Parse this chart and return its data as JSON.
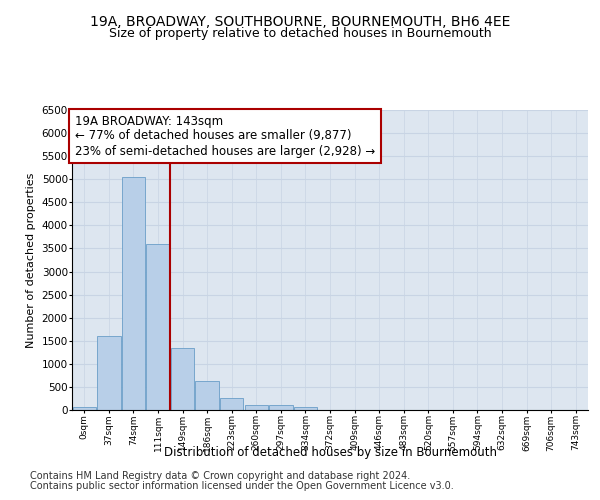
{
  "title_line1": "19A, BROADWAY, SOUTHBOURNE, BOURNEMOUTH, BH6 4EE",
  "title_line2": "Size of property relative to detached houses in Bournemouth",
  "xlabel": "Distribution of detached houses by size in Bournemouth",
  "ylabel": "Number of detached properties",
  "footer_line1": "Contains HM Land Registry data © Crown copyright and database right 2024.",
  "footer_line2": "Contains public sector information licensed under the Open Government Licence v3.0.",
  "annotation_line1": "19A BROADWAY: 143sqm",
  "annotation_line2": "← 77% of detached houses are smaller (9,877)",
  "annotation_line3": "23% of semi-detached houses are larger (2,928) →",
  "categories": [
    "0sqm",
    "37sqm",
    "74sqm",
    "111sqm",
    "149sqm",
    "186sqm",
    "223sqm",
    "260sqm",
    "297sqm",
    "334sqm",
    "372sqm",
    "409sqm",
    "446sqm",
    "483sqm",
    "520sqm",
    "557sqm",
    "594sqm",
    "632sqm",
    "669sqm",
    "706sqm",
    "743sqm"
  ],
  "values": [
    55,
    1600,
    5050,
    3600,
    1350,
    620,
    270,
    115,
    100,
    65,
    0,
    0,
    0,
    0,
    0,
    0,
    0,
    0,
    0,
    0,
    0
  ],
  "bar_color": "#b8cfe8",
  "bar_edge_color": "#6a9ec8",
  "vline_color": "#aa0000",
  "vline_x": 3.5,
  "ylim": [
    0,
    6500
  ],
  "yticks": [
    0,
    500,
    1000,
    1500,
    2000,
    2500,
    3000,
    3500,
    4000,
    4500,
    5000,
    5500,
    6000,
    6500
  ],
  "grid_color": "#c8d4e4",
  "background_color": "#dde6f0",
  "title_fontsize": 10,
  "subtitle_fontsize": 9,
  "annotation_fontsize": 8.5,
  "footer_fontsize": 7
}
